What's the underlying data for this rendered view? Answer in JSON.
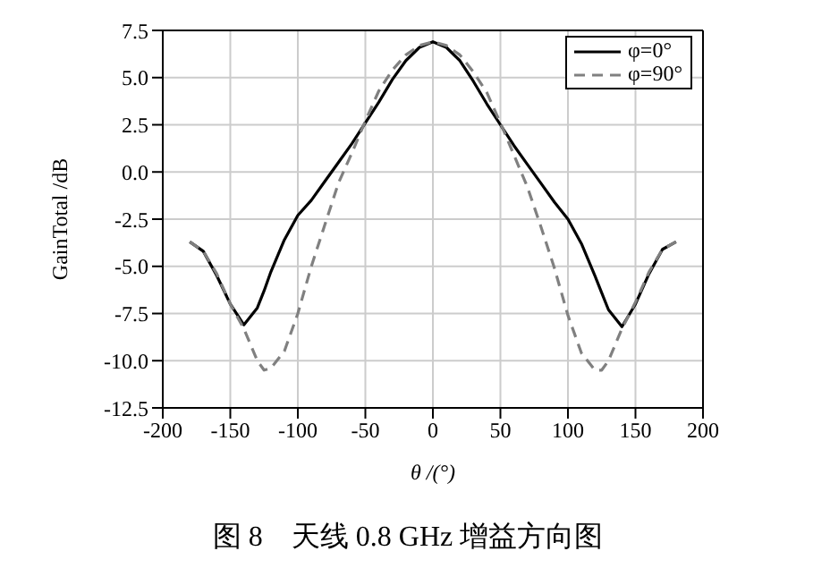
{
  "chart_data": {
    "type": "line",
    "title": "图 8　天线 0.8 GHz 增益方向图",
    "xlabel": "θ /(°)",
    "ylabel": "GainTotal /dB",
    "x": [
      -180,
      -170,
      -160,
      -150,
      -140,
      -130,
      -125,
      -120,
      -110,
      -100,
      -90,
      -80,
      -70,
      -60,
      -50,
      -40,
      -30,
      -20,
      -10,
      0,
      10,
      20,
      30,
      40,
      50,
      60,
      70,
      80,
      90,
      100,
      110,
      120,
      125,
      130,
      140,
      150,
      160,
      170,
      180
    ],
    "series": [
      {
        "name": "φ=0°",
        "color": "#000000",
        "line_style": "solid",
        "values": [
          -3.7,
          -4.2,
          -5.5,
          -7.0,
          -8.1,
          -7.2,
          -6.3,
          -5.3,
          -3.6,
          -2.3,
          -1.5,
          -0.5,
          0.5,
          1.5,
          2.6,
          3.7,
          4.9,
          5.9,
          6.6,
          6.9,
          6.6,
          5.9,
          4.8,
          3.6,
          2.5,
          1.4,
          0.4,
          -0.6,
          -1.6,
          -2.5,
          -3.8,
          -5.5,
          -6.4,
          -7.3,
          -8.2,
          -7.0,
          -5.4,
          -4.1,
          -3.7
        ]
      },
      {
        "name": "φ=90°",
        "color": "#808080",
        "line_style": "dashed",
        "values": [
          -3.7,
          -4.2,
          -5.4,
          -7.0,
          -8.3,
          -10.0,
          -10.5,
          -10.4,
          -9.5,
          -7.5,
          -5.0,
          -2.8,
          -0.6,
          1.0,
          2.7,
          4.3,
          5.4,
          6.2,
          6.7,
          6.9,
          6.7,
          6.2,
          5.3,
          4.2,
          2.6,
          0.9,
          -0.8,
          -2.9,
          -5.1,
          -7.6,
          -9.6,
          -10.5,
          -10.5,
          -10.0,
          -8.3,
          -6.9,
          -5.3,
          -4.1,
          -3.7
        ]
      }
    ],
    "xlim": [
      -200,
      200
    ],
    "xticks": [
      -200,
      -150,
      -100,
      -50,
      0,
      50,
      100,
      150,
      200
    ],
    "ylim": [
      -12.5,
      7.5
    ],
    "yticks": [
      -12.5,
      {
        "value": -10,
        "label": "-10.0"
      },
      -7.5,
      {
        "value": -5,
        "label": "-5.0"
      },
      -2.5,
      {
        "value": 0,
        "label": "0.0"
      },
      2.5,
      {
        "value": 5,
        "label": "5.0"
      },
      7.5
    ],
    "grid": true,
    "legend": "top right",
    "marker": "none"
  }
}
